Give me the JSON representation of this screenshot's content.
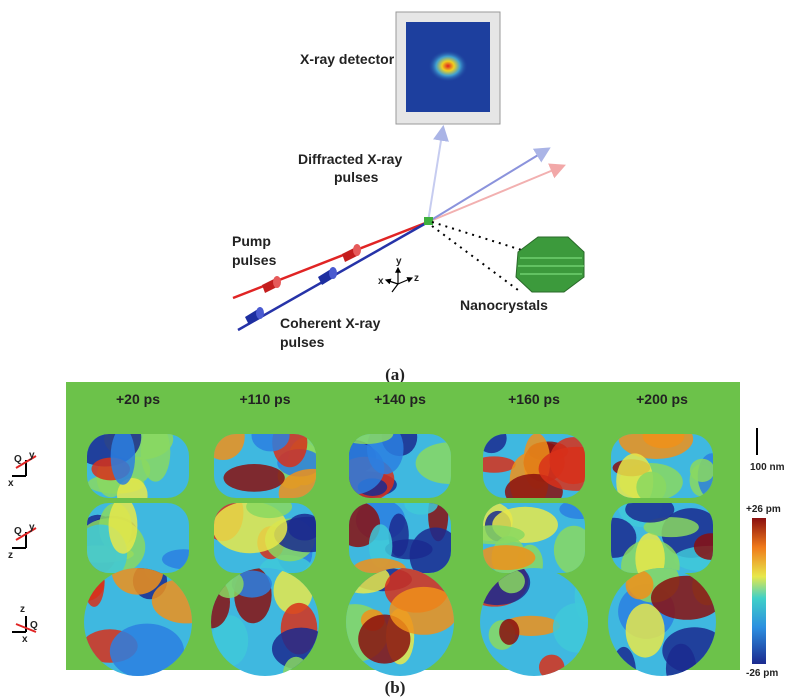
{
  "panel_a": {
    "detector_label": "X-ray detector",
    "diffracted_label": [
      "Diffracted X-ray",
      "pulses"
    ],
    "pump_label": [
      "Pump",
      "pulses"
    ],
    "coherent_label": [
      "Coherent X-ray",
      "pulses"
    ],
    "nanocrystals_label": "Nanocrystals",
    "axes": [
      "x",
      "y",
      "z"
    ],
    "caption": "(a)"
  },
  "panel_b": {
    "times": [
      "+20 ps",
      "+110 ps",
      "+140 ps",
      "+160 ps",
      "+200 ps"
    ],
    "orientations": [
      [
        "Q",
        "y",
        "x"
      ],
      [
        "Q",
        "y",
        "z"
      ],
      [
        "z",
        "Q",
        "x"
      ]
    ],
    "scale_bar": "100 nm",
    "colorbar": {
      "max": "+26 pm",
      "min": "-26 pm"
    },
    "caption": "(b)"
  }
}
